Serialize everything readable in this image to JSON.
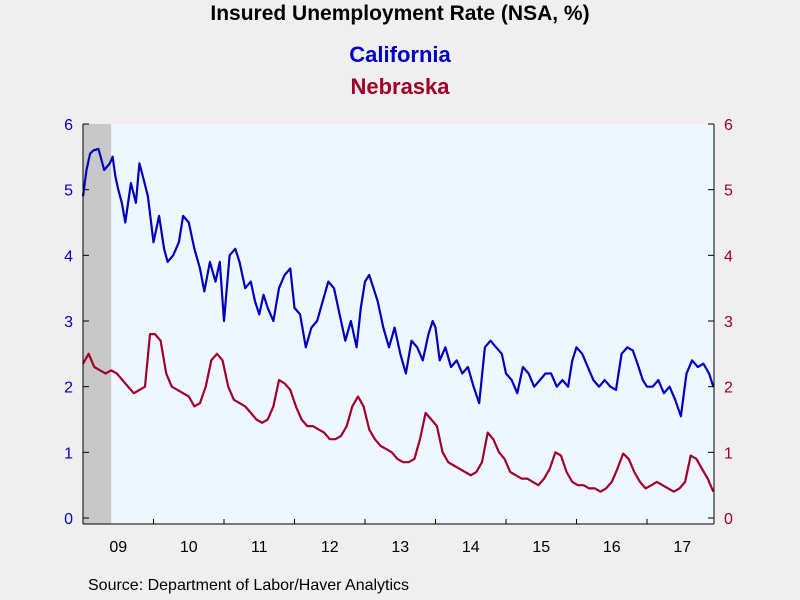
{
  "source_text": "Source:  Department of Labor/Haver Analytics",
  "colors": {
    "california": "#0000c0",
    "nebraska": "#a00028",
    "plot_bg": "#eef6ff",
    "recession": "#c8c8c8",
    "page_bg": "#efefef"
  },
  "chart_data": {
    "type": "line",
    "title": "Insured Unemployment Rate (NSA, %)",
    "xlabel": "",
    "ylabel": "",
    "x_range": [
      2009.0,
      2017.95
    ],
    "ylim": [
      0,
      6
    ],
    "y_ticks": [
      0,
      1,
      2,
      3,
      4,
      5,
      6
    ],
    "y_tick_labels": [
      "0",
      "1",
      "2",
      "3",
      "4",
      "5",
      "6"
    ],
    "x_tick_labels": [
      {
        "label": "09",
        "center": 2009.5
      },
      {
        "label": "10",
        "center": 2010.5
      },
      {
        "label": "11",
        "center": 2011.5
      },
      {
        "label": "12",
        "center": 2012.5
      },
      {
        "label": "13",
        "center": 2013.5
      },
      {
        "label": "14",
        "center": 2014.5
      },
      {
        "label": "15",
        "center": 2015.5
      },
      {
        "label": "16",
        "center": 2016.5
      },
      {
        "label": "17",
        "center": 2017.5
      }
    ],
    "year_boundaries": [
      2010,
      2011,
      2012,
      2013,
      2014,
      2015,
      2016,
      2017
    ],
    "recession_shading": [
      2009.0,
      2009.4
    ],
    "grid": false,
    "legend": "top-center",
    "series": [
      {
        "name": "California",
        "axis": "left",
        "x": [
          2009.0,
          2009.05,
          2009.1,
          2009.15,
          2009.22,
          2009.3,
          2009.38,
          2009.42,
          2009.46,
          2009.5,
          2009.55,
          2009.6,
          2009.68,
          2009.75,
          2009.8,
          2009.85,
          2009.92,
          2010.0,
          2010.08,
          2010.15,
          2010.2,
          2010.28,
          2010.36,
          2010.42,
          2010.5,
          2010.58,
          2010.66,
          2010.72,
          2010.8,
          2010.88,
          2010.94,
          2011.0,
          2011.08,
          2011.16,
          2011.22,
          2011.3,
          2011.38,
          2011.44,
          2011.5,
          2011.56,
          2011.62,
          2011.7,
          2011.78,
          2011.86,
          2011.94,
          2012.0,
          2012.08,
          2012.16,
          2012.24,
          2012.32,
          2012.4,
          2012.48,
          2012.56,
          2012.64,
          2012.72,
          2012.8,
          2012.88,
          2012.94,
          2013.0,
          2013.06,
          2013.12,
          2013.18,
          2013.26,
          2013.34,
          2013.42,
          2013.5,
          2013.58,
          2013.66,
          2013.74,
          2013.82,
          2013.9,
          2013.96,
          2014.0,
          2014.06,
          2014.14,
          2014.22,
          2014.3,
          2014.38,
          2014.46,
          2014.54,
          2014.62,
          2014.7,
          2014.78,
          2014.86,
          2014.94,
          2015.0,
          2015.08,
          2015.16,
          2015.24,
          2015.32,
          2015.4,
          2015.48,
          2015.56,
          2015.64,
          2015.72,
          2015.8,
          2015.88,
          2015.94,
          2016.0,
          2016.08,
          2016.16,
          2016.24,
          2016.32,
          2016.4,
          2016.48,
          2016.56,
          2016.64,
          2016.72,
          2016.8,
          2016.88,
          2016.94,
          2017.0,
          2017.08,
          2017.16,
          2017.24,
          2017.32,
          2017.4,
          2017.48,
          2017.56,
          2017.64,
          2017.72,
          2017.8,
          2017.88,
          2017.94
        ],
        "values": [
          4.9,
          5.3,
          5.55,
          5.6,
          5.62,
          5.3,
          5.4,
          5.5,
          5.2,
          5.0,
          4.8,
          4.5,
          5.1,
          4.8,
          5.4,
          5.2,
          4.9,
          4.2,
          4.6,
          4.1,
          3.9,
          4.0,
          4.2,
          4.6,
          4.5,
          4.1,
          3.8,
          3.45,
          3.9,
          3.6,
          3.9,
          3.0,
          4.0,
          4.1,
          3.9,
          3.5,
          3.6,
          3.3,
          3.1,
          3.4,
          3.2,
          3.0,
          3.5,
          3.7,
          3.8,
          3.2,
          3.1,
          2.6,
          2.9,
          3.0,
          3.3,
          3.6,
          3.5,
          3.1,
          2.7,
          3.0,
          2.6,
          3.2,
          3.6,
          3.7,
          3.5,
          3.3,
          2.9,
          2.6,
          2.9,
          2.5,
          2.2,
          2.7,
          2.6,
          2.4,
          2.8,
          3.0,
          2.9,
          2.4,
          2.6,
          2.3,
          2.4,
          2.2,
          2.3,
          2.0,
          1.75,
          2.6,
          2.7,
          2.6,
          2.5,
          2.2,
          2.1,
          1.9,
          2.3,
          2.2,
          2.0,
          2.1,
          2.2,
          2.2,
          2.0,
          2.1,
          2.0,
          2.4,
          2.6,
          2.5,
          2.3,
          2.1,
          2.0,
          2.1,
          2.0,
          1.95,
          2.5,
          2.6,
          2.55,
          2.3,
          2.1,
          2.0,
          2.0,
          2.1,
          1.9,
          2.0,
          1.8,
          1.55,
          2.2,
          2.4,
          2.3,
          2.35,
          2.2,
          2.0
        ]
      },
      {
        "name": "Nebraska",
        "axis": "right",
        "x": [
          2009.0,
          2009.08,
          2009.16,
          2009.24,
          2009.32,
          2009.4,
          2009.48,
          2009.56,
          2009.64,
          2009.72,
          2009.8,
          2009.88,
          2009.95,
          2010.02,
          2010.1,
          2010.18,
          2010.26,
          2010.34,
          2010.42,
          2010.5,
          2010.58,
          2010.66,
          2010.74,
          2010.82,
          2010.9,
          2010.98,
          2011.06,
          2011.14,
          2011.22,
          2011.3,
          2011.38,
          2011.46,
          2011.54,
          2011.62,
          2011.7,
          2011.78,
          2011.86,
          2011.94,
          2012.02,
          2012.1,
          2012.18,
          2012.26,
          2012.34,
          2012.42,
          2012.5,
          2012.58,
          2012.66,
          2012.74,
          2012.82,
          2012.9,
          2012.98,
          2013.06,
          2013.14,
          2013.22,
          2013.3,
          2013.38,
          2013.46,
          2013.54,
          2013.62,
          2013.7,
          2013.78,
          2013.86,
          2013.94,
          2014.02,
          2014.1,
          2014.18,
          2014.26,
          2014.34,
          2014.42,
          2014.5,
          2014.58,
          2014.66,
          2014.74,
          2014.82,
          2014.9,
          2014.98,
          2015.06,
          2015.14,
          2015.22,
          2015.3,
          2015.38,
          2015.46,
          2015.54,
          2015.62,
          2015.7,
          2015.78,
          2015.86,
          2015.94,
          2016.02,
          2016.1,
          2016.18,
          2016.26,
          2016.34,
          2016.42,
          2016.5,
          2016.58,
          2016.66,
          2016.74,
          2016.82,
          2016.9,
          2016.98,
          2017.06,
          2017.14,
          2017.22,
          2017.3,
          2017.38,
          2017.46,
          2017.54,
          2017.62,
          2017.7,
          2017.78,
          2017.86,
          2017.94
        ],
        "values": [
          2.35,
          2.5,
          2.3,
          2.25,
          2.2,
          2.25,
          2.2,
          2.1,
          2.0,
          1.9,
          1.95,
          2.0,
          2.8,
          2.8,
          2.7,
          2.2,
          2.0,
          1.95,
          1.9,
          1.85,
          1.7,
          1.75,
          2.0,
          2.4,
          2.5,
          2.4,
          2.0,
          1.8,
          1.75,
          1.7,
          1.6,
          1.5,
          1.45,
          1.5,
          1.7,
          2.1,
          2.05,
          1.95,
          1.7,
          1.5,
          1.4,
          1.4,
          1.35,
          1.3,
          1.2,
          1.2,
          1.25,
          1.4,
          1.7,
          1.85,
          1.7,
          1.35,
          1.2,
          1.1,
          1.05,
          1.0,
          0.9,
          0.85,
          0.85,
          0.9,
          1.2,
          1.6,
          1.5,
          1.4,
          1.0,
          0.85,
          0.8,
          0.75,
          0.7,
          0.65,
          0.7,
          0.85,
          1.3,
          1.2,
          1.0,
          0.9,
          0.7,
          0.65,
          0.6,
          0.6,
          0.55,
          0.5,
          0.6,
          0.75,
          1.0,
          0.95,
          0.7,
          0.55,
          0.5,
          0.5,
          0.45,
          0.45,
          0.4,
          0.45,
          0.55,
          0.75,
          0.98,
          0.9,
          0.7,
          0.55,
          0.45,
          0.5,
          0.55,
          0.5,
          0.45,
          0.4,
          0.45,
          0.55,
          0.95,
          0.9,
          0.75,
          0.6,
          0.4
        ]
      }
    ]
  }
}
